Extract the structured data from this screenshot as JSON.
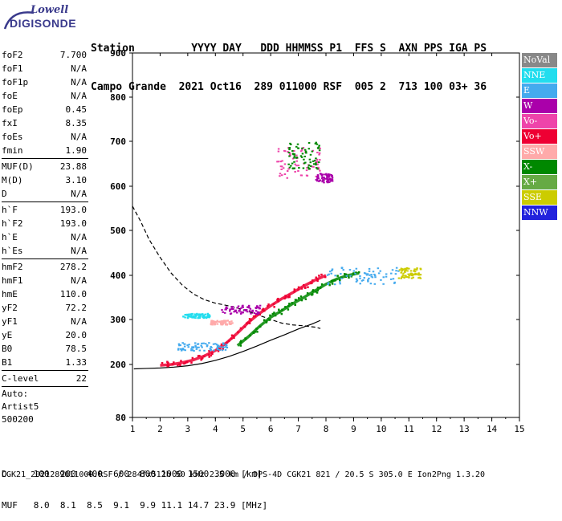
{
  "logo": {
    "top": "Lowell",
    "bottom": "DIGISONDE"
  },
  "header": {
    "line1": "Station         YYYY DAY   DDD HHMMSS P1  FFS S  AXN PPS IGA PS",
    "line2": "Campo Grande  2021 Oct16  289 011000 RSF  005 2  713 100 03+ 36"
  },
  "params_block1": [
    {
      "name": "foF2",
      "value": "7.700"
    },
    {
      "name": "foF1",
      "value": "N/A"
    },
    {
      "name": "foF1p",
      "value": "N/A"
    },
    {
      "name": "foE",
      "value": "N/A"
    },
    {
      "name": "foEp",
      "value": "0.45"
    },
    {
      "name": "fxI",
      "value": "8.35"
    },
    {
      "name": "foEs",
      "value": "N/A"
    },
    {
      "name": "fmin",
      "value": "1.90"
    }
  ],
  "params_block2": [
    {
      "name": "MUF(D)",
      "value": "23.88"
    },
    {
      "name": "M(D)",
      "value": "3.10"
    },
    {
      "name": "D",
      "value": "N/A"
    }
  ],
  "params_block3": [
    {
      "name": "h`F",
      "value": "193.0"
    },
    {
      "name": "h`F2",
      "value": "193.0"
    },
    {
      "name": "h`E",
      "value": "N/A"
    },
    {
      "name": "h`Es",
      "value": "N/A"
    }
  ],
  "params_block4": [
    {
      "name": "hmF2",
      "value": "278.2"
    },
    {
      "name": "hmF1",
      "value": "N/A"
    },
    {
      "name": "hmE",
      "value": "110.0"
    },
    {
      "name": "yF2",
      "value": "72.2"
    },
    {
      "name": "yF1",
      "value": "N/A"
    },
    {
      "name": "yE",
      "value": "20.0"
    },
    {
      "name": "B0",
      "value": "78.5"
    },
    {
      "name": "B1",
      "value": "1.33"
    }
  ],
  "params_block5": [
    {
      "name": "C-level",
      "value": "22"
    }
  ],
  "auto": [
    "Auto:",
    "Artist5",
    "500200"
  ],
  "legend": [
    {
      "label": "NoVal",
      "color": "#888888"
    },
    {
      "label": "NNE",
      "color": "#22ddee"
    },
    {
      "label": "E",
      "color": "#44aaee"
    },
    {
      "label": "W",
      "color": "#aa00aa"
    },
    {
      "label": "Vo-",
      "color": "#ee44aa"
    },
    {
      "label": "Vo+",
      "color": "#ee0033"
    },
    {
      "label": "SSW",
      "color": "#ffaaaa"
    },
    {
      "label": "X-",
      "color": "#008800"
    },
    {
      "label": "X+",
      "color": "#66aa44"
    },
    {
      "label": "SSE",
      "color": "#cccc00"
    },
    {
      "label": "NNW",
      "color": "#2222dd"
    }
  ],
  "footer": {
    "line1": "D     100  200  400  600  800 1000 1500 3000 [km]",
    "line2": "MUF   8.0  8.1  8.5  9.1  9.9 11.1 14.7 23.9 [MHz]",
    "line3": "CGK21_2021289011000.RSF / 284fx512h 50 kHz 2.5 km / DPS-4D CGK21 821 / 20.5 S 305.0 E Ion2Png 1.3.20"
  },
  "chart_data": {
    "type": "scatter",
    "title": "",
    "xlabel": "",
    "ylabel": "",
    "xlim": [
      1,
      15
    ],
    "ylim": [
      80,
      900
    ],
    "x_ticks": [
      1,
      2,
      3,
      4,
      5,
      6,
      7,
      8,
      9,
      10,
      11,
      12,
      13,
      14,
      15
    ],
    "y_ticks": [
      80,
      200,
      300,
      400,
      500,
      600,
      700,
      800,
      900
    ],
    "grid": false,
    "legend_placement": "right",
    "series": [
      {
        "kind": "line",
        "style": "solid",
        "color": "#000000",
        "x": [
          1.05,
          1.5,
          2.0,
          2.5,
          3.0,
          3.5,
          4.0,
          4.5,
          5.0,
          5.5,
          6.0,
          6.5,
          7.0,
          7.5,
          7.8
        ],
        "y": [
          190,
          191,
          192,
          194,
          197,
          202,
          209,
          218,
          229,
          241,
          254,
          266,
          279,
          290,
          298
        ]
      },
      {
        "kind": "line",
        "style": "dashed",
        "color": "#000000",
        "x": [
          1.0,
          1.3,
          1.6,
          2.0,
          2.4,
          2.8,
          3.2,
          3.6,
          4.0,
          4.4,
          4.8,
          5.2,
          5.6,
          6.0,
          6.4,
          6.8,
          7.2,
          7.6,
          7.8
        ],
        "y": [
          555,
          520,
          480,
          440,
          405,
          378,
          358,
          345,
          337,
          332,
          326,
          318,
          309,
          300,
          292,
          288,
          286,
          283,
          280
        ]
      },
      {
        "kind": "trace",
        "name": "Vo+",
        "color": "#ee0033",
        "x": [
          2.0,
          2.4,
          2.8,
          3.2,
          3.6,
          4.0,
          4.4,
          4.8,
          5.2,
          5.6,
          6.0,
          6.4,
          6.8,
          7.2,
          7.6,
          8.0
        ],
        "y": [
          198,
          200,
          204,
          210,
          219,
          231,
          248,
          270,
          294,
          314,
          331,
          347,
          361,
          376,
          389,
          400
        ]
      },
      {
        "kind": "trace",
        "name": "X-",
        "color": "#008800",
        "x": [
          4.8,
          5.2,
          5.6,
          6.0,
          6.4,
          6.8,
          7.2,
          7.6,
          8.0,
          8.4,
          8.8,
          9.2
        ],
        "y": [
          242,
          262,
          285,
          305,
          320,
          336,
          350,
          365,
          380,
          392,
          400,
          405
        ]
      },
      {
        "kind": "cloud",
        "name": "E",
        "color": "#44aaee",
        "x": [
          2.6,
          4.4
        ],
        "y": [
          232,
          250
        ]
      },
      {
        "kind": "cloud",
        "name": "NNE",
        "color": "#22ddee",
        "x": [
          2.8,
          3.8
        ],
        "y": [
          305,
          315
        ]
      },
      {
        "kind": "cloud",
        "name": "W",
        "color": "#aa00aa",
        "x": [
          4.2,
          5.6
        ],
        "y": [
          314,
          334
        ]
      },
      {
        "kind": "cloud",
        "name": "SSW",
        "color": "#ffaaaa",
        "x": [
          3.8,
          4.6
        ],
        "y": [
          290,
          300
        ]
      },
      {
        "kind": "cloud",
        "name": "E",
        "color": "#44aaee",
        "x": [
          8.0,
          10.6
        ],
        "y": [
          380,
          420
        ]
      },
      {
        "kind": "cloud",
        "name": "Vo-",
        "color": "#ee44aa",
        "x": [
          6.2,
          7.8
        ],
        "y": [
          620,
          690
        ]
      },
      {
        "kind": "cloud",
        "name": "X-",
        "color": "#008800",
        "x": [
          6.6,
          7.8
        ],
        "y": [
          640,
          700
        ]
      },
      {
        "kind": "cloud",
        "name": "W",
        "color": "#aa00aa",
        "x": [
          7.6,
          8.2
        ],
        "y": [
          610,
          630
        ]
      },
      {
        "kind": "cloud",
        "name": "SSE",
        "color": "#cccc00",
        "x": [
          10.6,
          11.4
        ],
        "y": [
          395,
          420
        ]
      }
    ]
  }
}
